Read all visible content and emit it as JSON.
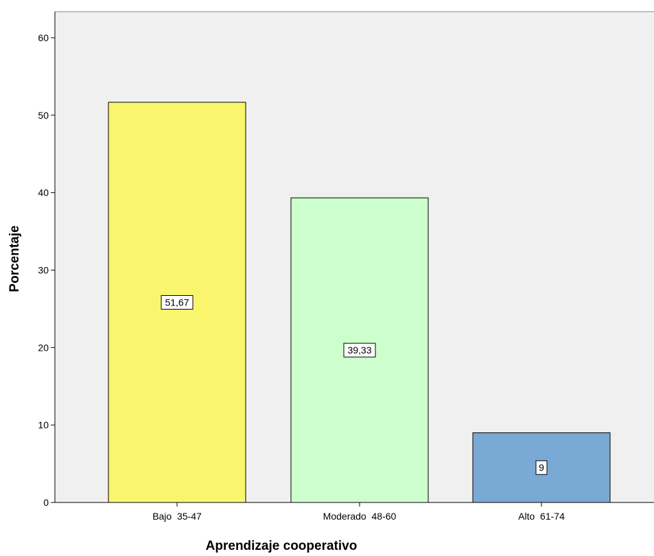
{
  "chart_data": {
    "type": "bar",
    "title": "",
    "xlabel": "Aprendizaje cooperativo",
    "ylabel": "Porcentaje",
    "categories": [
      "Bajo  35-47",
      "Moderado  48-60",
      "Alto  61-74"
    ],
    "values": [
      51.67,
      39.33,
      9
    ],
    "data_labels": [
      "51,67",
      "39,33",
      "9"
    ],
    "colors": [
      "#f9f66e",
      "#ccffcc",
      "#7ba9d6"
    ],
    "ylim": [
      0,
      60
    ],
    "yticks": [
      0,
      10,
      20,
      30,
      40,
      50,
      60
    ],
    "yticklabels": [
      "0",
      "10",
      "20",
      "30",
      "40",
      "50",
      "60"
    ],
    "grid": false,
    "legend": "none",
    "plot_background": "#f0f0f0"
  }
}
